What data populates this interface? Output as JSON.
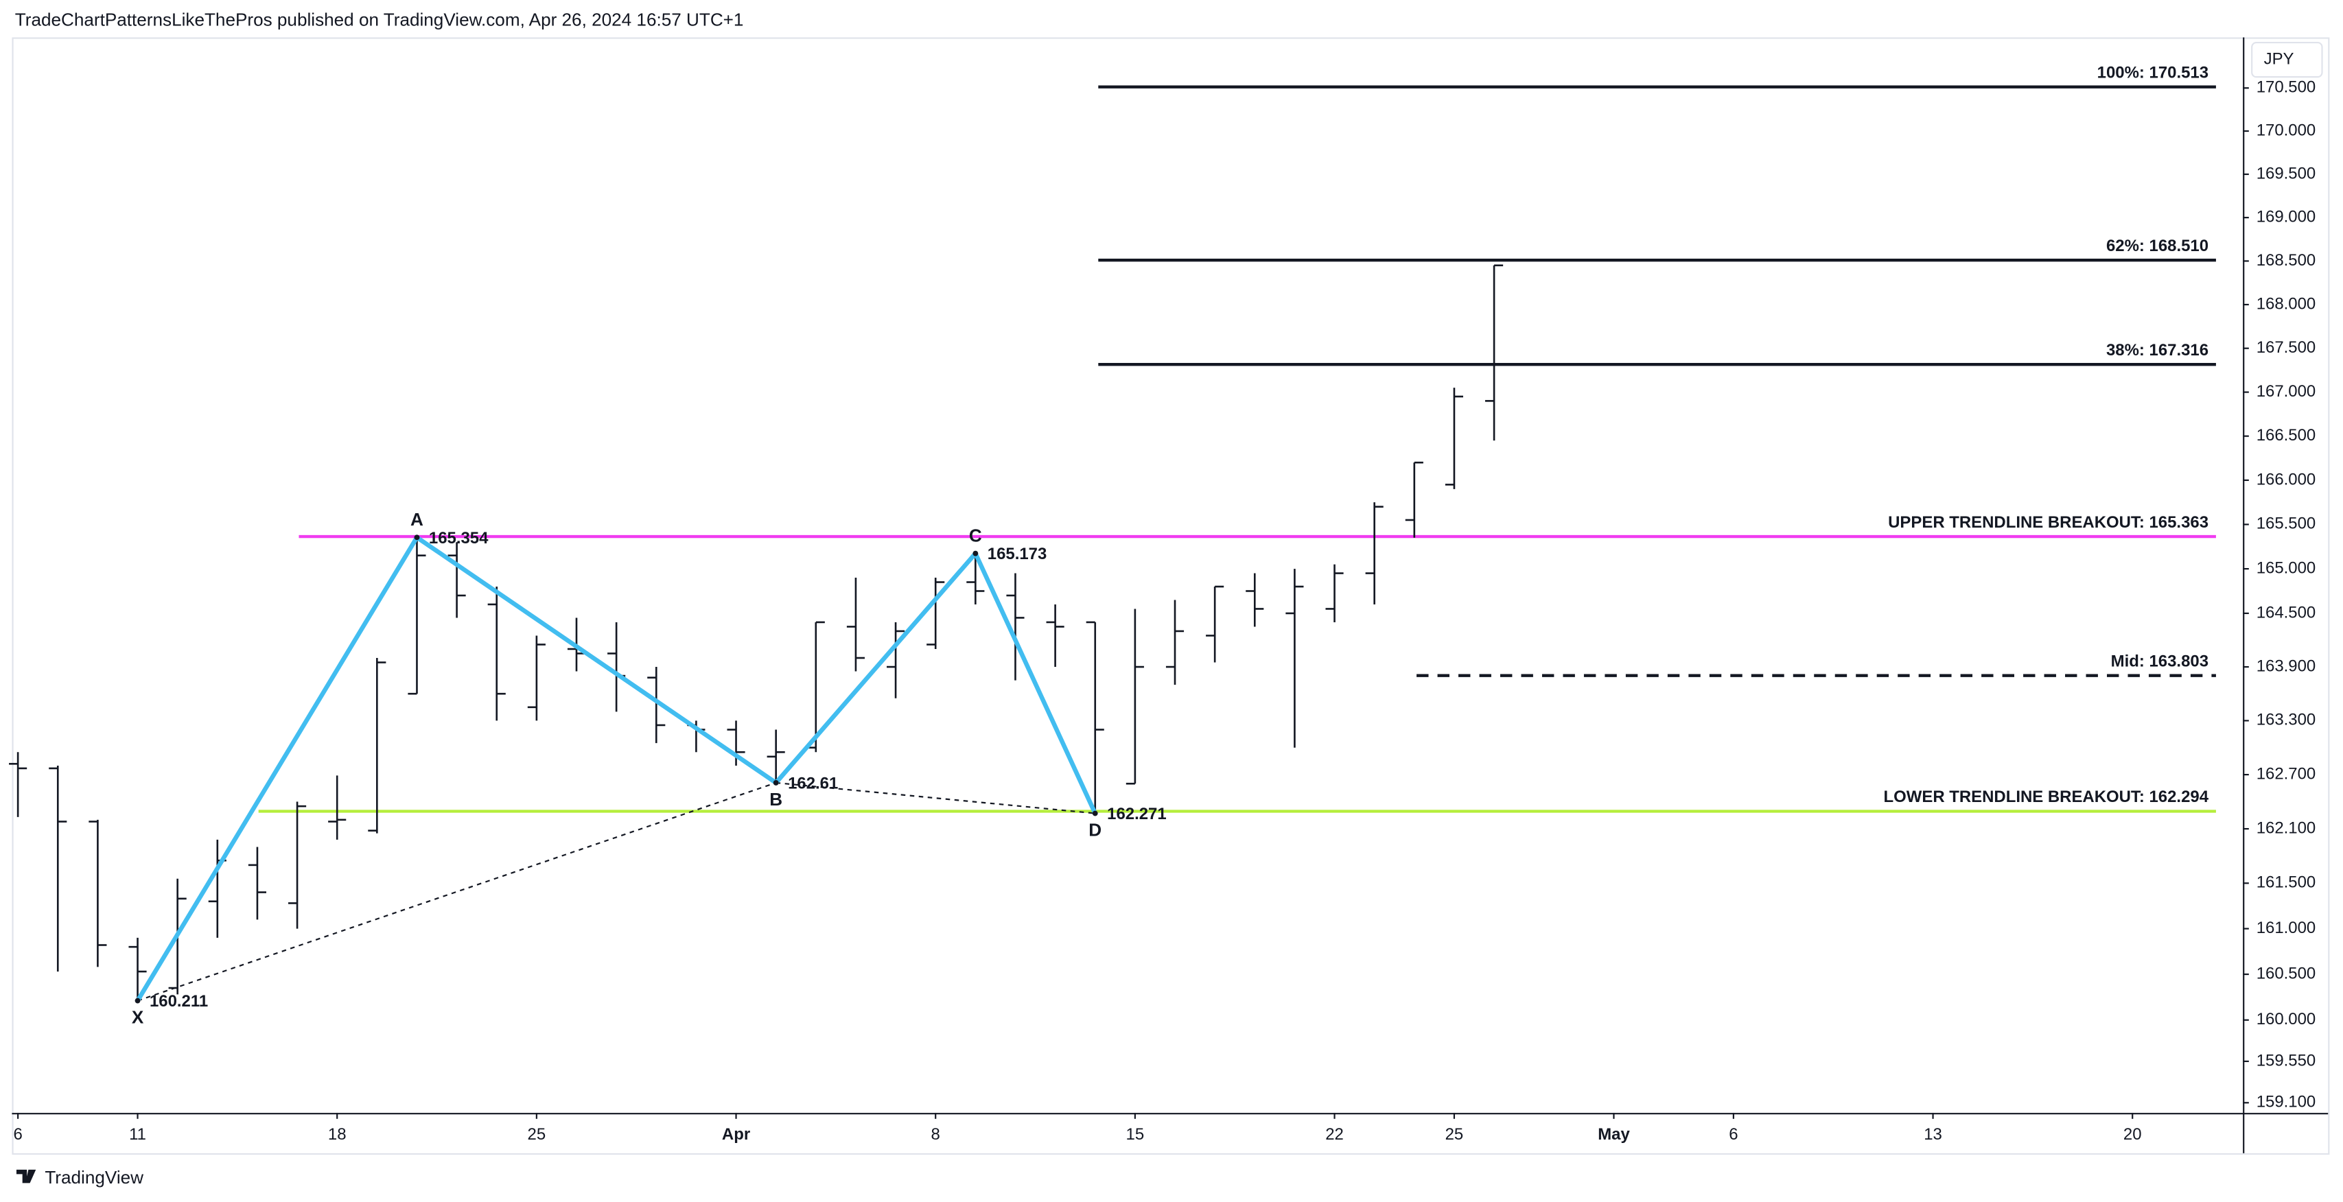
{
  "header": {
    "text": "TradeChartPatternsLikeThePros published on TradingView.com, Apr 26, 2024 16:57 UTC+1"
  },
  "chart_data": {
    "type": "ohlc",
    "currency": "JPY",
    "log": true,
    "color": "#131722",
    "categories": [
      "6",
      null,
      null,
      "11",
      null,
      null,
      null,
      null,
      "18",
      null,
      null,
      null,
      null,
      "25",
      null,
      null,
      null,
      null,
      "Apr",
      null,
      null,
      null,
      null,
      "8",
      null,
      null,
      null,
      null,
      "15",
      null,
      null,
      null,
      null,
      "22",
      null,
      null,
      "25",
      null,
      null,
      null,
      "May",
      null,
      null,
      "6",
      null,
      null,
      null,
      null,
      "13",
      null,
      null,
      null,
      null,
      "20",
      null,
      null
    ],
    "open": [
      162.82,
      162.77,
      162.18,
      160.8,
      160.35,
      161.3,
      161.7,
      161.28,
      162.18,
      162.08,
      163.6,
      165.15,
      164.6,
      163.45,
      164.1,
      164.05,
      163.78,
      163.25,
      163.2,
      162.9,
      163.0,
      164.35,
      163.9,
      164.15,
      164.85,
      164.7,
      164.4,
      164.4,
      162.6,
      163.9,
      164.25,
      164.75,
      164.5,
      164.55,
      164.95,
      165.55,
      165.95,
      166.9,
      null,
      null,
      null,
      null,
      null,
      null,
      null,
      null,
      null,
      null,
      null,
      null,
      null,
      null,
      null,
      null,
      null,
      null
    ],
    "high": [
      162.95,
      162.8,
      162.2,
      160.9,
      161.55,
      161.98,
      161.9,
      162.4,
      162.69,
      164.0,
      165.354,
      165.3,
      164.8,
      164.25,
      164.45,
      164.4,
      163.9,
      163.3,
      163.3,
      163.2,
      164.4,
      164.9,
      164.4,
      164.9,
      165.173,
      164.95,
      164.6,
      164.4,
      164.55,
      164.65,
      164.8,
      164.95,
      165.0,
      165.05,
      165.75,
      166.2,
      167.05,
      168.45,
      null,
      null,
      null,
      null,
      null,
      null,
      null,
      null,
      null,
      null,
      null,
      null,
      null,
      null,
      null,
      null,
      null,
      null
    ],
    "low": [
      162.23,
      160.53,
      160.58,
      160.211,
      160.28,
      160.9,
      161.1,
      161.0,
      161.98,
      162.05,
      163.6,
      164.45,
      163.3,
      163.3,
      163.85,
      163.4,
      163.05,
      162.95,
      162.8,
      162.61,
      162.95,
      163.85,
      163.55,
      164.1,
      164.6,
      163.75,
      163.9,
      162.271,
      162.6,
      163.7,
      163.95,
      164.35,
      163.0,
      164.4,
      164.6,
      165.35,
      165.9,
      166.45,
      null,
      null,
      null,
      null,
      null,
      null,
      null,
      null,
      null,
      null,
      null,
      null,
      null,
      null,
      null,
      null,
      null,
      null
    ],
    "close": [
      162.77,
      162.18,
      160.82,
      160.53,
      161.33,
      161.75,
      161.4,
      162.35,
      162.2,
      163.95,
      165.15,
      164.7,
      163.6,
      164.15,
      164.05,
      163.8,
      163.25,
      163.2,
      162.95,
      162.95,
      164.4,
      164.0,
      164.3,
      164.85,
      164.75,
      164.45,
      164.35,
      163.2,
      163.9,
      164.3,
      164.8,
      164.55,
      164.8,
      164.95,
      165.7,
      166.2,
      166.95,
      168.45,
      null,
      null,
      null,
      null,
      null,
      null,
      null,
      null,
      null,
      null,
      null,
      null,
      null,
      null,
      null,
      null,
      null,
      null
    ],
    "ylim": [
      158.99,
      171.09
    ],
    "yticks": [
      {
        "value": 170.5,
        "label": "170.500"
      },
      {
        "value": 170,
        "label": "170.000"
      },
      {
        "value": 169.5,
        "label": "169.500"
      },
      {
        "value": 169,
        "label": "169.000"
      },
      {
        "value": 168.5,
        "label": "168.500"
      },
      {
        "value": 168,
        "label": "168.000"
      },
      {
        "value": 167.5,
        "label": "167.500"
      },
      {
        "value": 167,
        "label": "167.000"
      },
      {
        "value": 166.5,
        "label": "166.500"
      },
      {
        "value": 166,
        "label": "166.000"
      },
      {
        "value": 165.5,
        "label": "165.500"
      },
      {
        "value": 165,
        "label": "165.000"
      },
      {
        "value": 164.5,
        "label": "164.500"
      },
      {
        "value": 163.9,
        "label": "163.900"
      },
      {
        "value": 163.3,
        "label": "163.300"
      },
      {
        "value": 162.7,
        "label": "162.700"
      },
      {
        "value": 162.1,
        "label": "162.100"
      },
      {
        "value": 161.5,
        "label": "161.500"
      },
      {
        "value": 161,
        "label": "161.000"
      },
      {
        "value": 160.5,
        "label": "160.500"
      },
      {
        "value": 160,
        "label": "160.000"
      },
      {
        "value": 159.55,
        "label": "159.550"
      },
      {
        "value": 159.1,
        "label": "159.100"
      }
    ],
    "pattern": {
      "color": "#42bdf0",
      "points": [
        {
          "label": "X",
          "index": 3,
          "value": 160.211
        },
        {
          "label": "A",
          "index": 10,
          "value": 165.354
        },
        {
          "label": "B",
          "index": 19,
          "value": 162.61
        },
        {
          "label": "C",
          "index": 24,
          "value": 165.173
        },
        {
          "label": "D",
          "index": 27,
          "value": 162.271
        }
      ]
    },
    "levels": [
      {
        "label": "100%: 170.513",
        "value": 170.513,
        "color": "#131722",
        "dashed": false
      },
      {
        "label": "62%: 168.510",
        "value": 168.51,
        "color": "#131722",
        "dashed": false
      },
      {
        "label": "38%: 167.316",
        "value": 167.316,
        "color": "#131722",
        "dashed": false
      },
      {
        "label": "UPPER TRENDLINE BREAKOUT: 165.363",
        "value": 165.363,
        "color": "#f03cf0",
        "dashed": false
      },
      {
        "label": "Mid: 163.803",
        "value": 163.803,
        "color": "#131722",
        "dashed": true
      },
      {
        "label": "LOWER TRENDLINE BREAKOUT: 162.294",
        "value": 162.294,
        "color": "#b5ee3c",
        "dashed": false
      }
    ]
  },
  "footer": {
    "brand": "TradingView"
  }
}
